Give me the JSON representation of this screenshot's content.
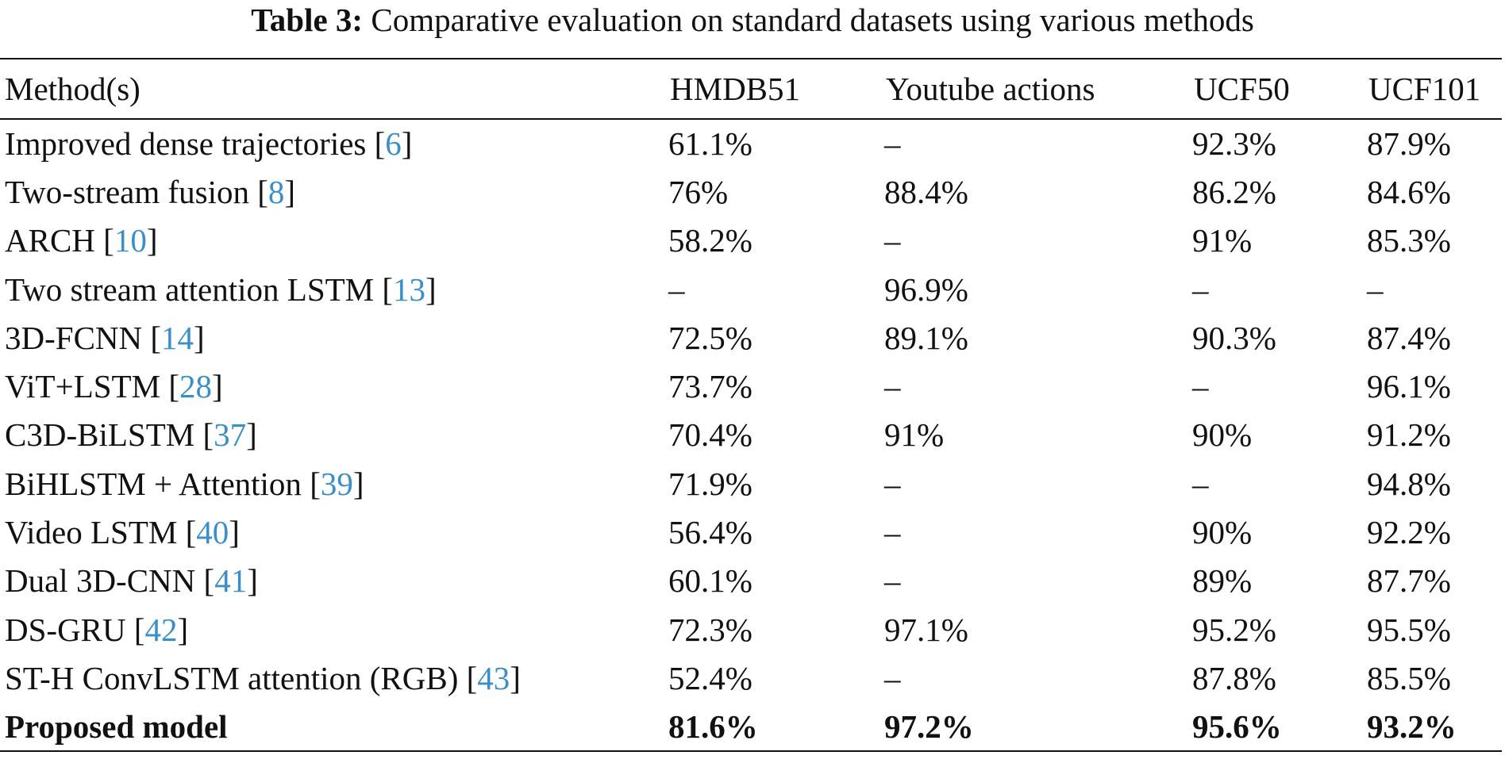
{
  "caption": {
    "label": "Table 3:",
    "text": "Comparative evaluation on standard datasets using various methods"
  },
  "headers": [
    "Method(s)",
    "HMDB51",
    "Youtube actions",
    "UCF50",
    "UCF101"
  ],
  "rows": [
    {
      "method": "Improved dense trajectories",
      "ref": "6",
      "values": [
        "61.1%",
        "–",
        "92.3%",
        "87.9%"
      ]
    },
    {
      "method": "Two-stream fusion",
      "ref": "8",
      "values": [
        "76%",
        "88.4%",
        "86.2%",
        "84.6%"
      ]
    },
    {
      "method": "ARCH",
      "ref": "10",
      "values": [
        "58.2%",
        "–",
        "91%",
        "85.3%"
      ]
    },
    {
      "method": "Two stream attention LSTM",
      "ref": "13",
      "values": [
        "–",
        "96.9%",
        "–",
        "–"
      ]
    },
    {
      "method": "3D-FCNN",
      "ref": "14",
      "values": [
        "72.5%",
        "89.1%",
        "90.3%",
        "87.4%"
      ]
    },
    {
      "method": "ViT+LSTM",
      "ref": "28",
      "values": [
        "73.7%",
        "–",
        "–",
        "96.1%"
      ]
    },
    {
      "method": "C3D-BiLSTM",
      "ref": "37",
      "values": [
        "70.4%",
        "91%",
        "90%",
        "91.2%"
      ]
    },
    {
      "method": "BiHLSTM + Attention",
      "ref": "39",
      "values": [
        "71.9%",
        "–",
        "–",
        "94.8%"
      ]
    },
    {
      "method": "Video LSTM",
      "ref": "40",
      "values": [
        "56.4%",
        "–",
        "90%",
        "92.2%"
      ]
    },
    {
      "method": "Dual 3D-CNN",
      "ref": "41",
      "values": [
        "60.1%",
        "–",
        "89%",
        "87.7%"
      ]
    },
    {
      "method": "DS-GRU",
      "ref": "42",
      "values": [
        "72.3%",
        "97.1%",
        "95.2%",
        "95.5%"
      ]
    },
    {
      "method": "ST-H ConvLSTM attention (RGB)",
      "ref": "43",
      "values": [
        "52.4%",
        "–",
        "87.8%",
        "85.5%"
      ]
    },
    {
      "method": "Proposed model",
      "ref": "",
      "values": [
        "81.6%",
        "97.2%",
        "95.6%",
        "93.2%"
      ],
      "bold": true
    }
  ],
  "colors": {
    "citation": "#3a8fc8",
    "text": "#111111"
  }
}
